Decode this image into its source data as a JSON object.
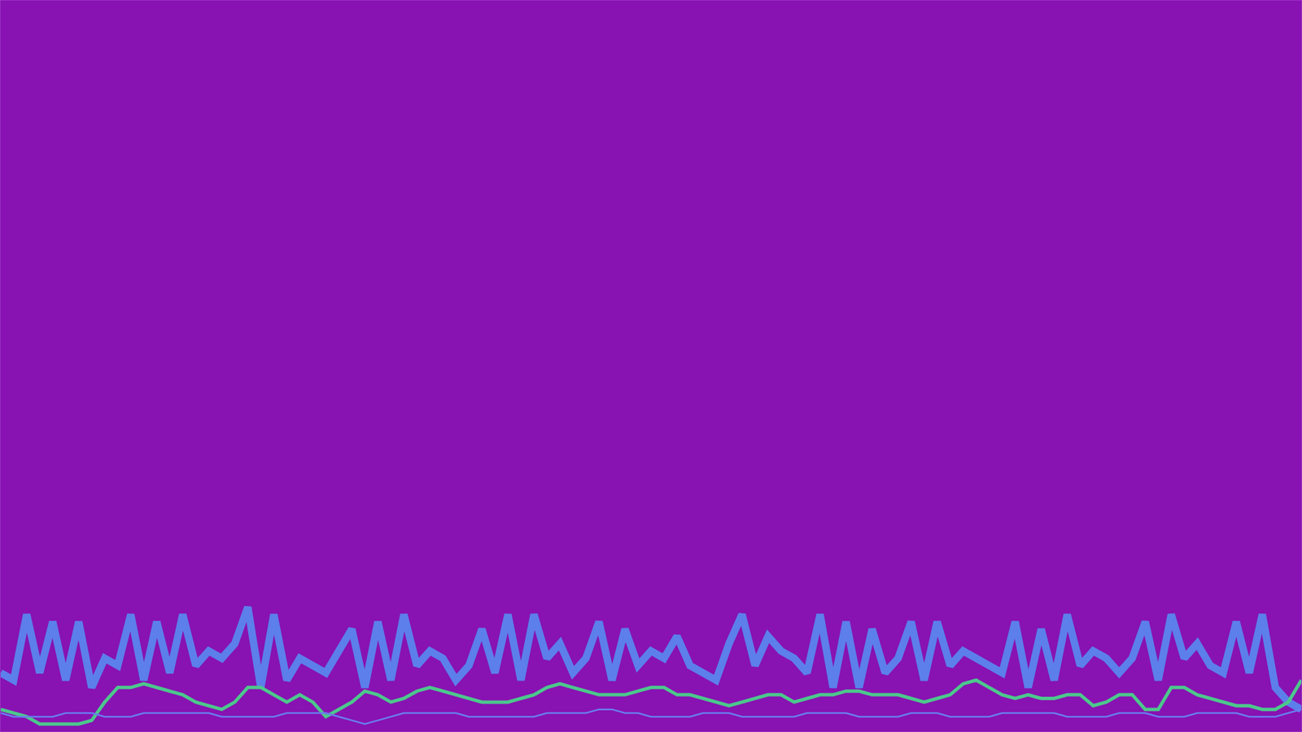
{
  "chart_data": {
    "type": "line",
    "x": [
      0,
      1,
      2,
      3,
      4,
      5,
      6,
      7,
      8,
      9,
      10,
      11,
      12,
      13,
      14,
      15,
      16,
      17,
      18,
      19,
      20,
      21,
      22,
      23,
      24,
      25,
      26,
      27,
      28,
      29,
      30,
      31,
      32,
      33,
      34,
      35,
      36,
      37,
      38,
      39,
      40,
      41,
      42,
      43,
      44,
      45,
      46,
      47,
      48,
      49,
      50,
      51,
      52,
      53,
      54,
      55,
      56,
      57,
      58,
      59,
      60,
      61,
      62,
      63,
      64,
      65,
      66,
      67,
      68,
      69,
      70,
      71,
      72,
      73,
      74,
      75,
      76,
      77,
      78,
      79,
      80,
      81,
      82,
      83,
      84,
      85,
      86,
      87,
      88,
      89,
      90,
      91,
      92,
      93,
      94,
      95,
      96,
      97,
      98,
      99,
      100
    ],
    "xlim": [
      0,
      100
    ],
    "ylim": [
      0,
      100
    ],
    "tick_labels": false,
    "grid": false,
    "series": [
      {
        "color": "#5a86ee",
        "values": [
          8,
          7,
          16,
          8,
          15,
          7,
          15,
          6,
          10,
          9,
          16,
          7,
          15,
          8,
          16,
          9,
          11,
          10,
          12,
          17,
          6,
          16,
          7,
          10,
          9,
          8,
          11,
          14,
          6,
          15,
          7,
          16,
          9,
          11,
          10,
          7,
          9,
          14,
          8,
          16,
          7,
          16,
          10,
          12,
          8,
          10,
          15,
          7,
          14,
          9,
          11,
          10,
          13,
          9,
          8,
          7,
          12,
          16,
          9,
          13,
          11,
          10,
          8,
          16,
          6,
          15,
          6,
          14,
          8,
          10,
          15,
          7,
          15,
          9,
          11,
          10,
          9,
          8,
          15,
          6,
          14,
          7,
          16,
          9,
          11,
          10,
          8,
          10,
          15,
          7,
          16,
          10,
          12,
          9,
          8,
          15,
          8,
          16,
          6,
          4,
          3
        ]
      },
      {
        "color": "#4cc88c",
        "values": [
          3,
          2.5,
          2,
          1,
          1,
          1,
          1,
          1.5,
          4,
          6,
          6,
          6.5,
          6,
          5.5,
          5,
          4,
          3.5,
          3,
          4,
          6,
          6,
          5,
          4,
          5,
          4,
          2,
          3,
          4,
          5.5,
          5,
          4,
          4.5,
          5.5,
          6,
          5.5,
          5,
          4.5,
          4,
          4,
          4,
          4.5,
          5,
          6,
          6.5,
          6,
          5.5,
          5,
          5,
          5,
          5.5,
          6,
          6,
          5,
          5,
          4.5,
          4,
          3.5,
          4,
          4.5,
          5,
          5,
          4,
          4.5,
          5,
          5,
          5.5,
          5.5,
          5,
          5,
          5,
          4.5,
          4,
          4.5,
          5,
          6.5,
          7,
          6,
          5,
          4.5,
          5,
          4.5,
          4.5,
          5,
          5,
          3.5,
          4,
          5,
          5,
          3,
          3,
          6,
          6,
          5,
          4.5,
          4,
          3.5,
          3.5,
          3,
          3,
          4,
          7
        ]
      },
      {
        "color": "#6a7cf0",
        "values": [
          2.5,
          2,
          2,
          2,
          2,
          2.5,
          2.5,
          2.5,
          2,
          2,
          2,
          2.5,
          2.5,
          2.5,
          2.5,
          2.5,
          2.5,
          2,
          2,
          2,
          2,
          2,
          2.5,
          2.5,
          2.5,
          2.5,
          2,
          1.5,
          1,
          1.5,
          2,
          2.5,
          2.5,
          2.5,
          2.5,
          2.5,
          2,
          2,
          2,
          2,
          2,
          2,
          2.5,
          2.5,
          2.5,
          2.5,
          3,
          3,
          2.5,
          2.5,
          2,
          2,
          2,
          2,
          2.5,
          2.5,
          2.5,
          2,
          2,
          2,
          2,
          2,
          2.5,
          2.5,
          2.5,
          2.5,
          2,
          2,
          2,
          2,
          2.5,
          2.5,
          2.5,
          2,
          2,
          2,
          2,
          2.5,
          2.5,
          2.5,
          2.5,
          2.5,
          2,
          2,
          2,
          2,
          2.5,
          2.5,
          2.5,
          2,
          2,
          2,
          2.5,
          2.5,
          2.5,
          2.5,
          2,
          2,
          2,
          2.5,
          3
        ]
      }
    ]
  }
}
